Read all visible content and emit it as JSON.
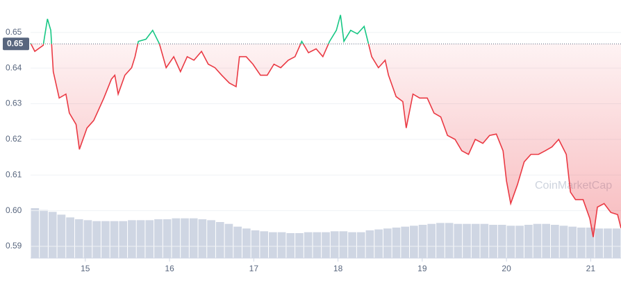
{
  "chart_data": {
    "type": "line",
    "x": [
      14.35,
      14.4,
      14.5,
      14.55,
      14.59,
      14.62,
      14.69,
      14.77,
      14.81,
      14.89,
      14.93,
      15.02,
      15.1,
      15.14,
      15.22,
      15.31,
      15.35,
      15.39,
      15.47,
      15.55,
      15.59,
      15.63,
      15.72,
      15.8,
      15.88,
      15.96,
      16.05,
      16.13,
      16.21,
      16.29,
      16.38,
      16.46,
      16.54,
      16.62,
      16.71,
      16.79,
      16.83,
      16.91,
      16.99,
      17.08,
      17.16,
      17.24,
      17.32,
      17.41,
      17.49,
      17.57,
      17.65,
      17.74,
      17.82,
      17.9,
      17.98,
      18.03,
      18.07,
      18.15,
      18.23,
      18.31,
      18.4,
      18.48,
      18.56,
      18.6,
      18.69,
      18.77,
      18.81,
      18.89,
      18.97,
      19.06,
      19.14,
      19.22,
      19.3,
      19.39,
      19.47,
      19.55,
      19.63,
      19.72,
      19.8,
      19.88,
      19.96,
      20.0,
      20.05,
      20.13,
      20.21,
      20.29,
      20.38,
      20.46,
      20.54,
      20.62,
      20.71,
      20.76,
      20.82,
      20.91,
      20.99,
      21.03,
      21.08,
      21.16,
      21.24,
      21.32,
      21.36
    ],
    "values": [
      0.647,
      0.6447,
      0.6464,
      0.6538,
      0.6506,
      0.639,
      0.6316,
      0.6327,
      0.6274,
      0.6242,
      0.6172,
      0.6232,
      0.6253,
      0.6274,
      0.6316,
      0.6369,
      0.638,
      0.6327,
      0.638,
      0.6401,
      0.6432,
      0.6475,
      0.6481,
      0.6506,
      0.6468,
      0.6401,
      0.6432,
      0.639,
      0.6432,
      0.6422,
      0.6447,
      0.6411,
      0.6401,
      0.638,
      0.6358,
      0.6348,
      0.6432,
      0.6432,
      0.6411,
      0.638,
      0.638,
      0.6411,
      0.6401,
      0.6422,
      0.6432,
      0.6475,
      0.6443,
      0.6454,
      0.6432,
      0.6475,
      0.6506,
      0.6549,
      0.6475,
      0.6506,
      0.6496,
      0.6517,
      0.6432,
      0.6401,
      0.6422,
      0.638,
      0.632,
      0.6306,
      0.6232,
      0.6327,
      0.6316,
      0.6316,
      0.6274,
      0.6263,
      0.6211,
      0.62,
      0.6168,
      0.6158,
      0.62,
      0.6189,
      0.6211,
      0.6215,
      0.6168,
      0.6084,
      0.602,
      0.6073,
      0.6137,
      0.6158,
      0.6158,
      0.6168,
      0.6179,
      0.62,
      0.6158,
      0.6052,
      0.6031,
      0.6031,
      0.5978,
      0.5926,
      0.601,
      0.602,
      0.5995,
      0.5989,
      0.5951
    ],
    "up_color": "#16c784",
    "down_color": "#ea3943",
    "reference": {
      "value": 0.6468,
      "label": "0.65"
    },
    "xlim": [
      14.35,
      21.36
    ],
    "xticks": [
      15,
      16,
      17,
      18,
      19,
      20,
      21
    ],
    "ylim": [
      0.5867,
      0.6591
    ],
    "yticks": [
      {
        "value": 0.59,
        "label": "0.59"
      },
      {
        "value": 0.6,
        "label": "0.60"
      },
      {
        "value": 0.61,
        "label": "0.61"
      },
      {
        "value": 0.62,
        "label": "0.62"
      },
      {
        "value": 0.63,
        "label": "0.63"
      },
      {
        "value": 0.64,
        "label": "0.64"
      },
      {
        "value": 0.65,
        "label": "0.65"
      }
    ],
    "grid": true,
    "volume": {
      "color": "#cfd6e3",
      "ylim": [
        0,
        60
      ],
      "values": [
        54,
        52,
        50,
        47,
        44,
        42,
        41,
        40,
        40,
        40,
        40,
        41,
        41,
        41,
        42,
        42,
        43,
        43,
        43,
        42,
        41,
        39,
        37,
        34,
        32,
        30,
        29,
        28,
        28,
        27,
        27,
        28,
        28,
        28,
        29,
        29,
        28,
        28,
        30,
        31,
        32,
        33,
        34,
        35,
        36,
        37,
        38,
        38,
        37,
        37,
        37,
        37,
        36,
        36,
        35,
        35,
        36,
        37,
        37,
        36,
        35,
        34,
        33,
        33,
        32,
        32,
        32
      ]
    },
    "watermark": "CoinMarketCap"
  }
}
